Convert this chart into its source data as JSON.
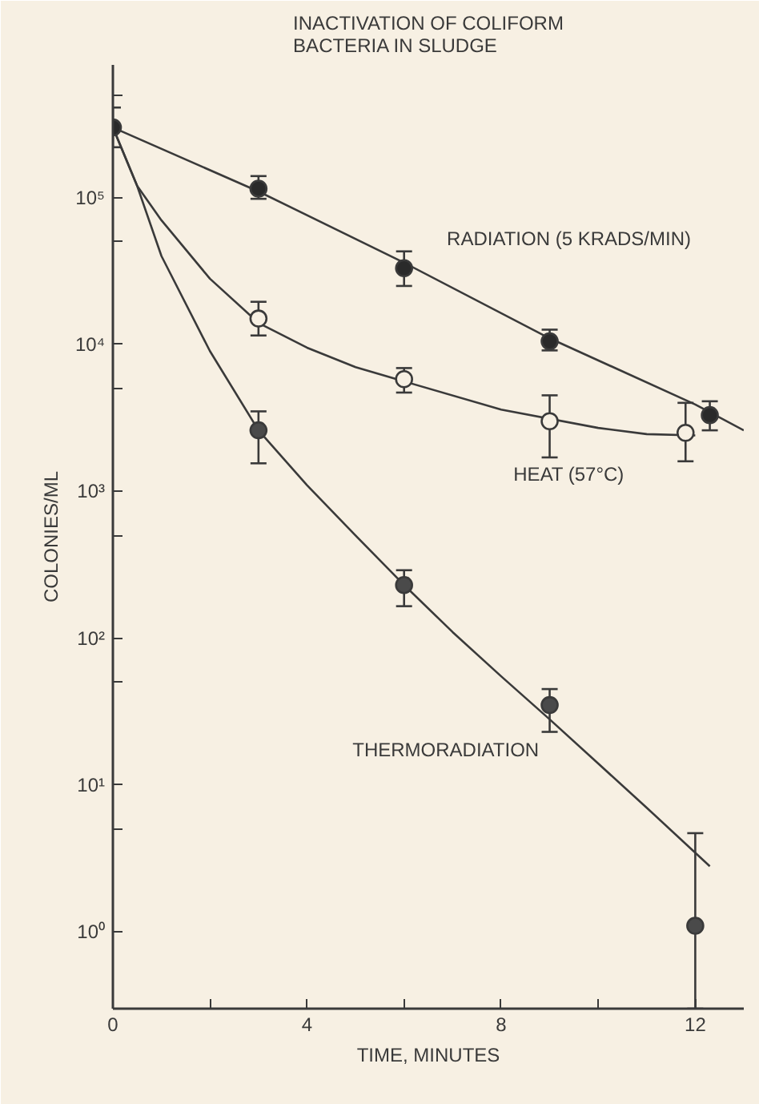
{
  "chart_data": {
    "type": "scatter",
    "title": "INACTIVATION OF COLIFORM\nBACTERIA IN SLUDGE",
    "xlabel": "TIME, MINUTES",
    "ylabel": "COLONIES/ML",
    "log": "y",
    "grid": false,
    "marker": "circle",
    "xlim": [
      0,
      13
    ],
    "ylim": [
      0.3,
      800000
    ],
    "xticks": [
      0,
      {
        "value": 2,
        "label": null
      },
      4,
      {
        "value": 6,
        "label": null
      },
      8,
      {
        "value": 10,
        "label": null
      },
      12
    ],
    "yticks": [
      {
        "value": 1,
        "label": "10⁰"
      },
      {
        "value": 5,
        "label": null
      },
      {
        "value": 10,
        "label": "10¹"
      },
      {
        "value": 50,
        "label": null
      },
      {
        "value": 100,
        "label": "10²"
      },
      {
        "value": 500,
        "label": null
      },
      {
        "value": 1000,
        "label": "10³"
      },
      {
        "value": 5000,
        "label": null
      },
      {
        "value": 10000,
        "label": "10⁴"
      },
      {
        "value": 50000,
        "label": null
      },
      {
        "value": 100000,
        "label": "10⁵"
      },
      {
        "value": 500000,
        "label": null
      }
    ],
    "series": [
      {
        "type": "line",
        "marker": "none",
        "color": "#3a3a3a",
        "x": [
          0,
          3,
          6,
          9,
          12,
          13
        ],
        "values": [
          300000,
          110000,
          36000,
          11000,
          3900,
          2600
        ]
      },
      {
        "type": "line",
        "marker": "none",
        "color": "#3a3a3a",
        "x": [
          0,
          0.5,
          1,
          2,
          3,
          4,
          5,
          6,
          8,
          10,
          11,
          12
        ],
        "values": [
          300000,
          120000,
          70000,
          28000,
          14000,
          9500,
          7000,
          5600,
          3600,
          2700,
          2450,
          2400
        ]
      },
      {
        "type": "line",
        "marker": "none",
        "color": "#3a3a3a",
        "x": [
          0,
          0.5,
          1,
          2,
          3,
          4,
          5,
          6,
          7,
          8,
          9,
          10,
          11,
          12.3
        ],
        "values": [
          300000,
          120000,
          40000,
          9000,
          2600,
          1100,
          500,
          230,
          110,
          55,
          28,
          14,
          7,
          2.8
        ]
      },
      {
        "name": "RADIATION (5 KRADS/MIN)",
        "color": "#2a2a2a",
        "x": [
          0,
          3,
          6,
          9,
          12.3
        ],
        "values": [
          300000,
          115000,
          33000,
          10500,
          3300
        ],
        "errors": [
          [
            220000,
            410000
          ],
          [
            98000,
            140000
          ],
          [
            25000,
            43000
          ],
          [
            9100,
            12600
          ],
          [
            2600,
            4100
          ]
        ]
      },
      {
        "name": "HEAT (57°C)",
        "color": "#f7f0e3",
        "x": [
          3,
          6,
          9,
          11.8
        ],
        "values": [
          15000,
          5800,
          3000,
          2500
        ],
        "errors": [
          [
            11500,
            19500
          ],
          [
            4700,
            6900
          ],
          [
            1700,
            4500
          ],
          [
            1600,
            4000
          ]
        ]
      },
      {
        "name": "THERMORADIATION",
        "color": "#4a4a4a",
        "x": [
          3,
          6,
          9,
          12
        ],
        "values": [
          2600,
          230,
          35,
          1.1
        ],
        "errors": [
          [
            1550,
            3500
          ],
          [
            165,
            290
          ],
          [
            23,
            45
          ],
          [
            0.3,
            4.7
          ]
        ]
      }
    ]
  }
}
